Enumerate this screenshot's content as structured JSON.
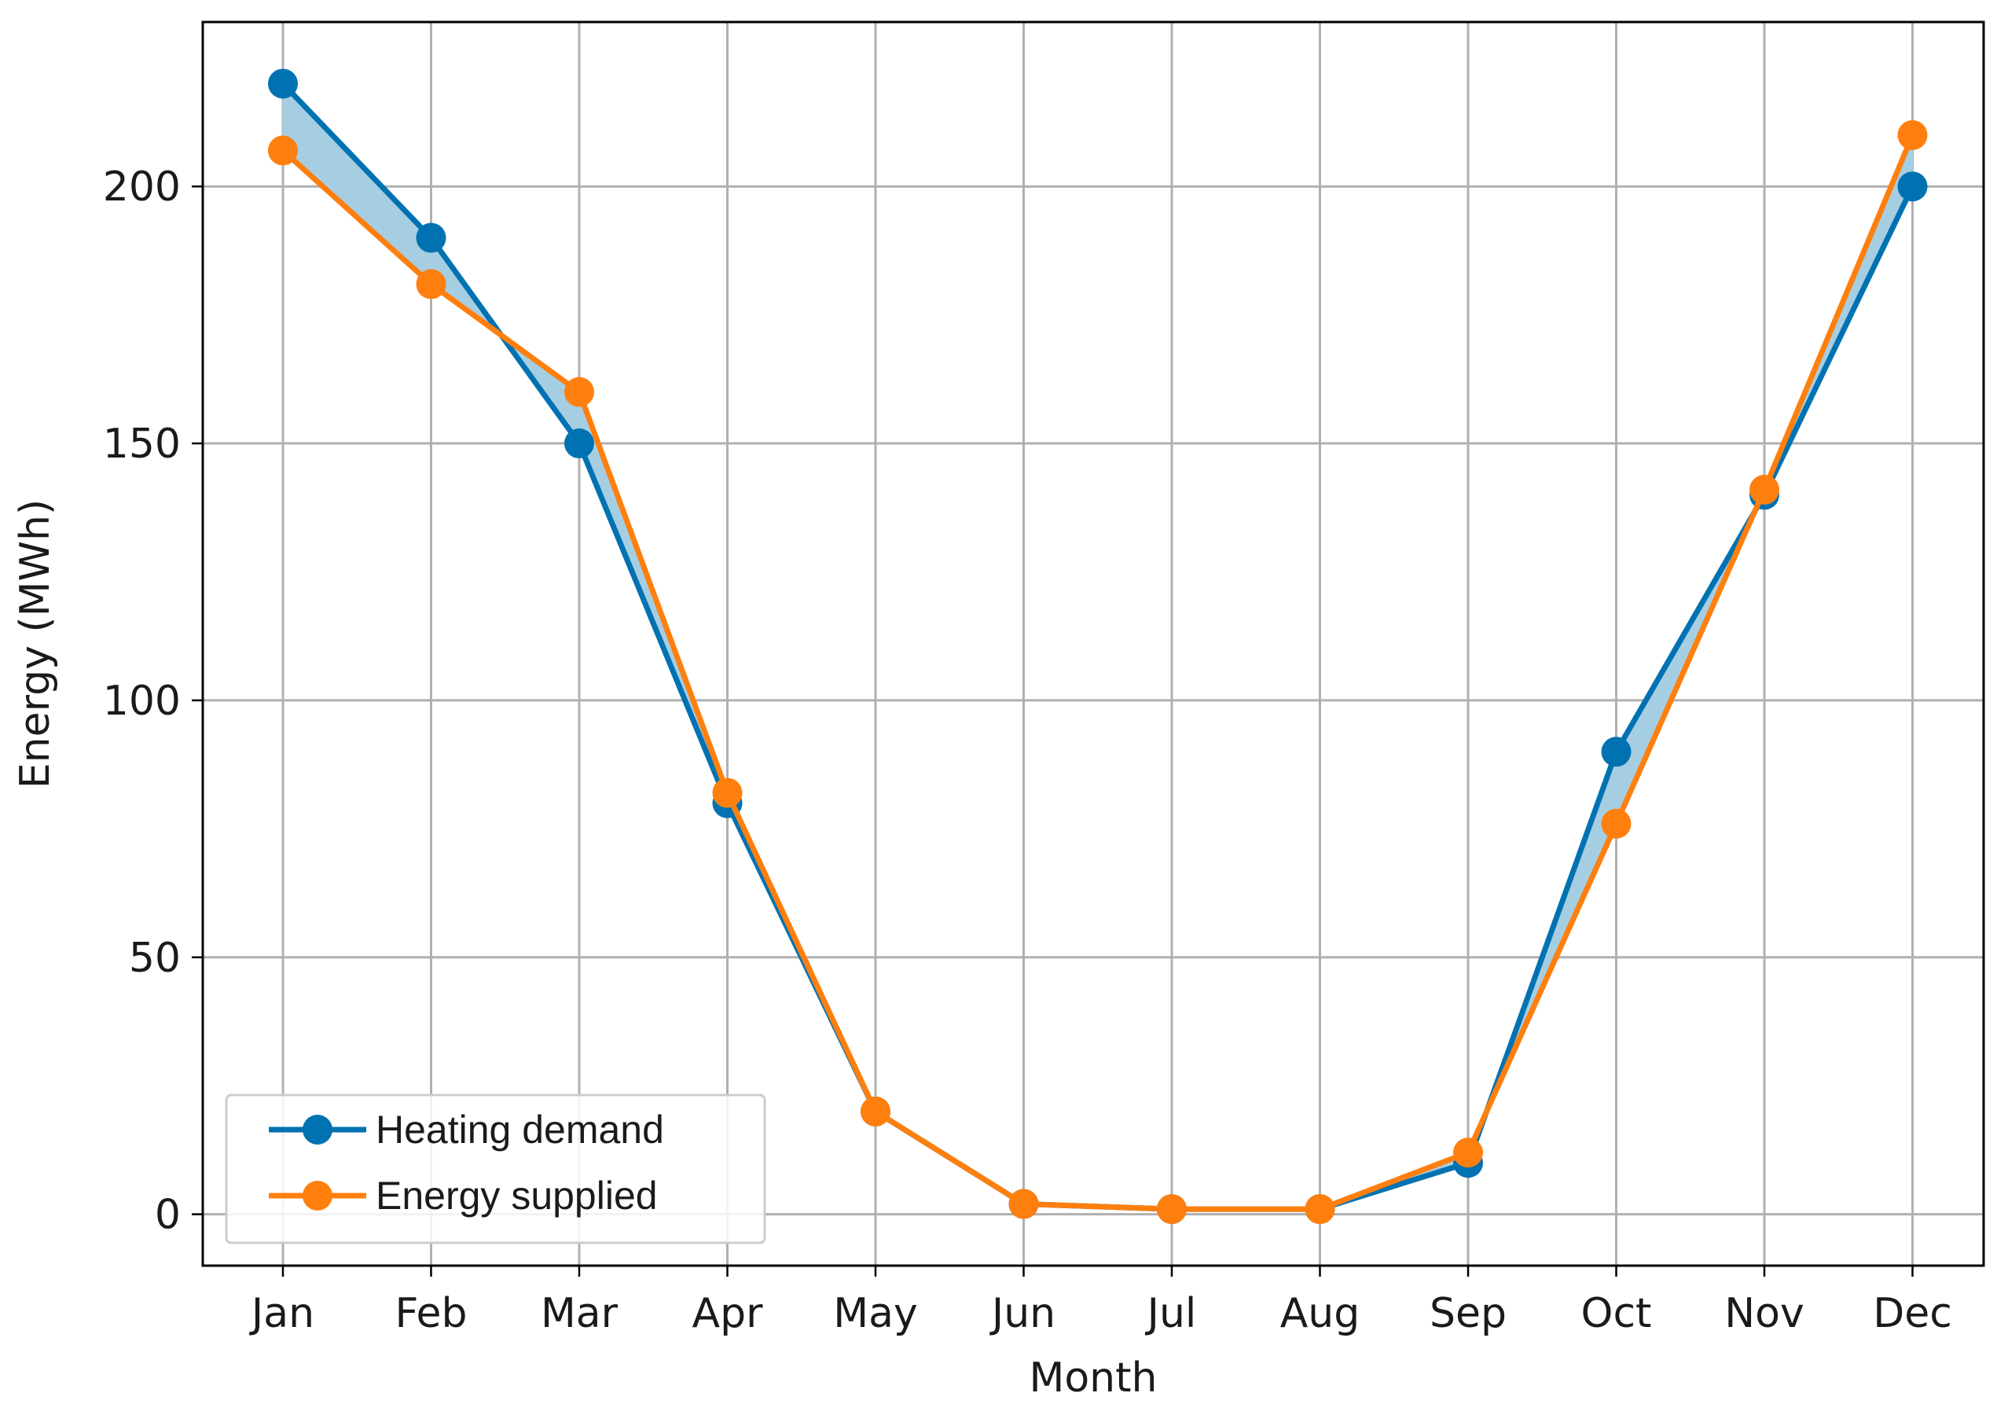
{
  "chart_data": {
    "type": "line",
    "title": "",
    "xlabel": "Month",
    "ylabel": "Energy (MWh)",
    "categories": [
      "Jan",
      "Feb",
      "Mar",
      "Apr",
      "May",
      "Jun",
      "Jul",
      "Aug",
      "Sep",
      "Oct",
      "Nov",
      "Dec"
    ],
    "series": [
      {
        "name": "Heating demand",
        "color": "#0072b2",
        "values": [
          220,
          190,
          150,
          80,
          20,
          2,
          1,
          1,
          10,
          90,
          140,
          200
        ]
      },
      {
        "name": "Energy supplied",
        "color": "#ff7f0e",
        "values": [
          207,
          181,
          160,
          82,
          20,
          2,
          1,
          1,
          12,
          76,
          141,
          210
        ]
      }
    ],
    "fill_between": {
      "color": "#a6cee3"
    },
    "ylim": [
      -10,
      232
    ],
    "yticks": [
      0,
      50,
      100,
      150,
      200
    ],
    "grid": true,
    "legend_position": "lower-left"
  }
}
